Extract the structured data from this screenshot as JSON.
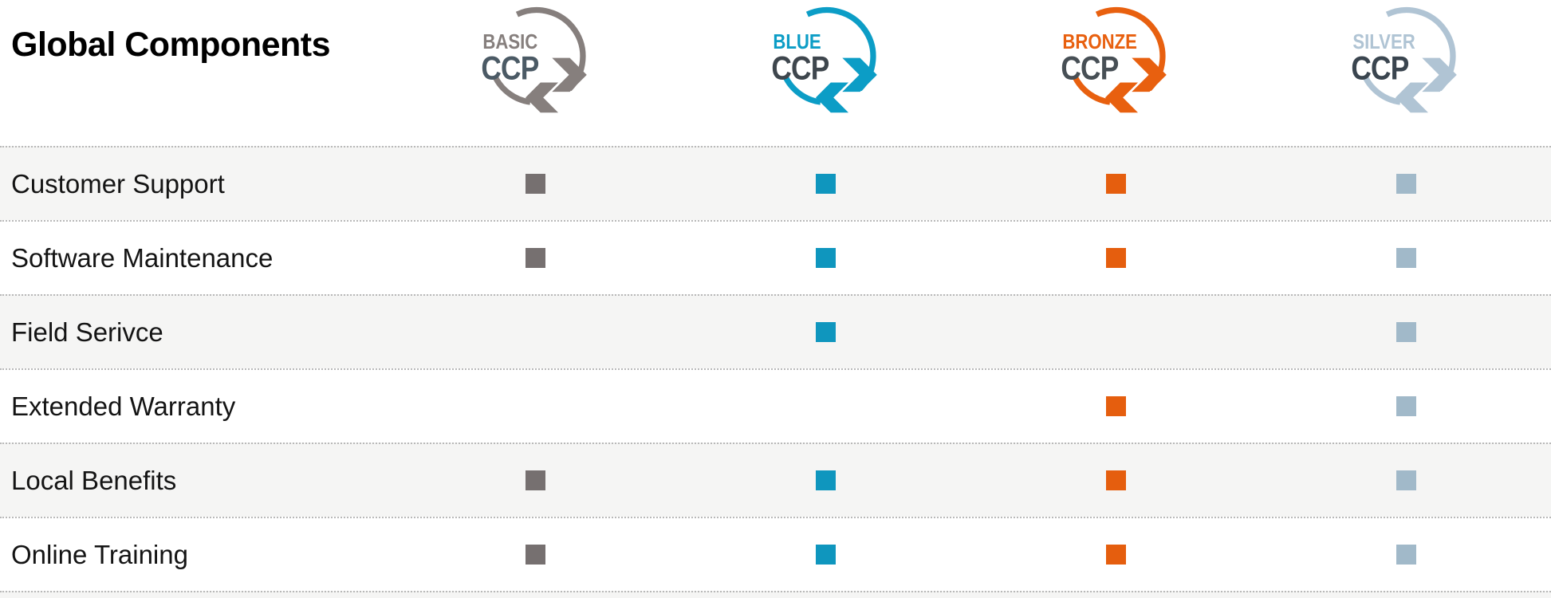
{
  "header": {
    "title": "Global Components"
  },
  "columns": [
    {
      "id": "basic",
      "tier_label": "BASIC",
      "brand": "CCP",
      "color": "#867f7d",
      "ccp_color": "#4b5a65",
      "square_color": "#767070"
    },
    {
      "id": "blue",
      "tier_label": "BLUE",
      "brand": "CCP",
      "color": "#0c9dc6",
      "ccp_color": "#3e464d",
      "square_color": "#0f96be"
    },
    {
      "id": "bronze",
      "tier_label": "BRONZE",
      "brand": "CCP",
      "color": "#e8600f",
      "ccp_color": "#474f55",
      "square_color": "#e55e0e"
    },
    {
      "id": "silver",
      "tier_label": "SILVER",
      "brand": "CCP",
      "color": "#b0c4d4",
      "ccp_color": "#3a454f",
      "square_color": "#a1b9c9"
    }
  ],
  "rows": [
    {
      "label": "Customer Support",
      "availability": [
        true,
        true,
        true,
        true
      ]
    },
    {
      "label": "Software Maintenance",
      "availability": [
        true,
        true,
        true,
        true
      ]
    },
    {
      "label": "Field Serivce",
      "availability": [
        false,
        true,
        false,
        true
      ]
    },
    {
      "label": "Extended Warranty",
      "availability": [
        false,
        false,
        true,
        true
      ]
    },
    {
      "label": "Local Benefits",
      "availability": [
        true,
        true,
        true,
        true
      ]
    },
    {
      "label": "Online Training",
      "availability": [
        true,
        true,
        true,
        true
      ]
    }
  ],
  "styles": {
    "row_alt_bg": "#f5f5f4",
    "row_bg": "#ffffff",
    "divider_color": "#b9b9b9",
    "label_color": "#141414",
    "title_color": "#000000"
  },
  "chart_data": {
    "type": "table",
    "title": "Global Components",
    "columns": [
      "BASIC CCP",
      "BLUE CCP",
      "BRONZE CCP",
      "SILVER CCP"
    ],
    "rows": [
      "Customer Support",
      "Software Maintenance",
      "Field Serivce",
      "Extended Warranty",
      "Local Benefits",
      "Online Training"
    ],
    "values": [
      [
        true,
        true,
        true,
        true
      ],
      [
        true,
        true,
        true,
        true
      ],
      [
        false,
        true,
        false,
        true
      ],
      [
        false,
        false,
        true,
        true
      ],
      [
        true,
        true,
        true,
        true
      ],
      [
        true,
        true,
        true,
        true
      ]
    ],
    "cell_marker": "filled-square",
    "legend_position": "none",
    "grid": "dotted-row-dividers"
  }
}
